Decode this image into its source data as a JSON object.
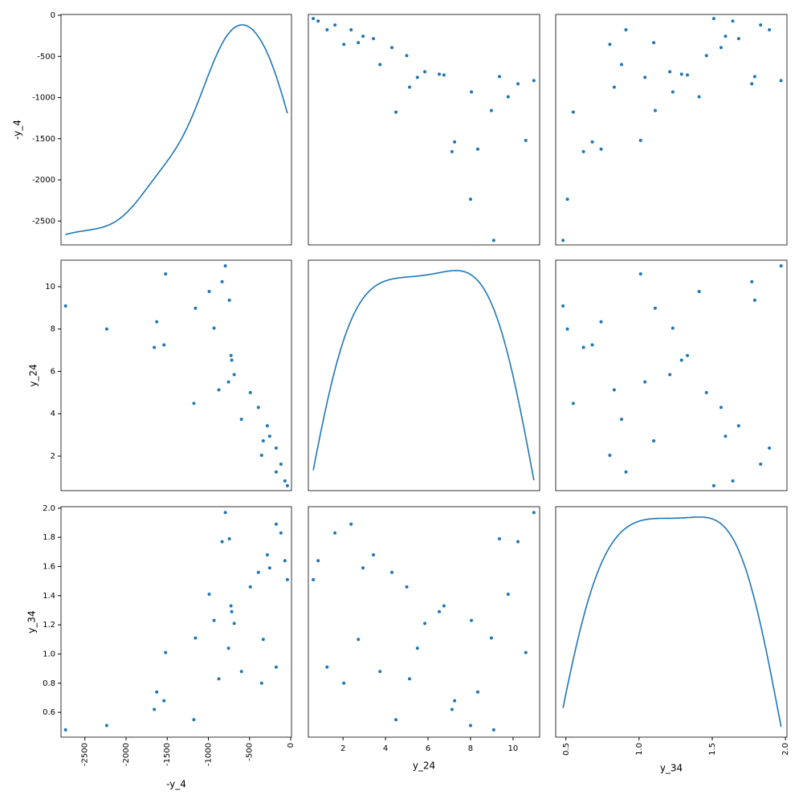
{
  "chart_data": {
    "type": "scatter_matrix",
    "color": "#1f77b4",
    "diagonal": "kde",
    "variables": [
      {
        "name": "-y_4",
        "lim": [
          -2790,
          10
        ],
        "ticks": [
          -2500,
          -2000,
          -1500,
          -1000,
          -500,
          0
        ],
        "values": [
          -40,
          -70,
          -176,
          -118,
          -353,
          -176,
          -333,
          -255,
          -284,
          -598,
          -392,
          -1176,
          -490,
          -873,
          -755,
          -686,
          -716,
          -725,
          -1657,
          -1539,
          -2235,
          -931,
          -1627,
          -1157,
          -2735,
          -745,
          -990,
          -833,
          -1520,
          -794
        ]
      },
      {
        "name": "y_24",
        "lim": [
          0.37,
          11.25
        ],
        "ticks": [
          2,
          4,
          6,
          8,
          10
        ],
        "values": [
          0.6,
          0.83,
          1.25,
          1.62,
          2.04,
          2.38,
          2.72,
          2.94,
          3.43,
          3.74,
          4.3,
          4.49,
          5.0,
          5.13,
          5.5,
          5.85,
          6.53,
          6.75,
          7.13,
          7.25,
          8.0,
          8.04,
          8.34,
          8.98,
          9.09,
          9.36,
          9.77,
          10.23,
          10.6,
          10.98
        ]
      },
      {
        "name": "y_34",
        "lim": [
          0.43,
          2.01
        ],
        "ticks": [
          0.6,
          0.8,
          {
            "value": 1,
            "label": "1.0"
          },
          1.2,
          1.4,
          1.6,
          1.8,
          {
            "value": 2,
            "label": "2.0"
          }
        ],
        "xticks": [
          0.5,
          {
            "value": 1,
            "label": "1.0"
          },
          1.5,
          {
            "value": 2,
            "label": "2.0"
          }
        ],
        "values": [
          1.51,
          1.64,
          0.91,
          1.83,
          0.8,
          1.89,
          1.1,
          1.59,
          1.68,
          0.88,
          1.56,
          0.55,
          1.46,
          0.83,
          1.04,
          1.21,
          1.29,
          1.33,
          0.62,
          0.68,
          0.51,
          1.23,
          0.74,
          1.11,
          0.48,
          1.79,
          1.41,
          1.77,
          1.01,
          1.97
        ]
      }
    ]
  }
}
